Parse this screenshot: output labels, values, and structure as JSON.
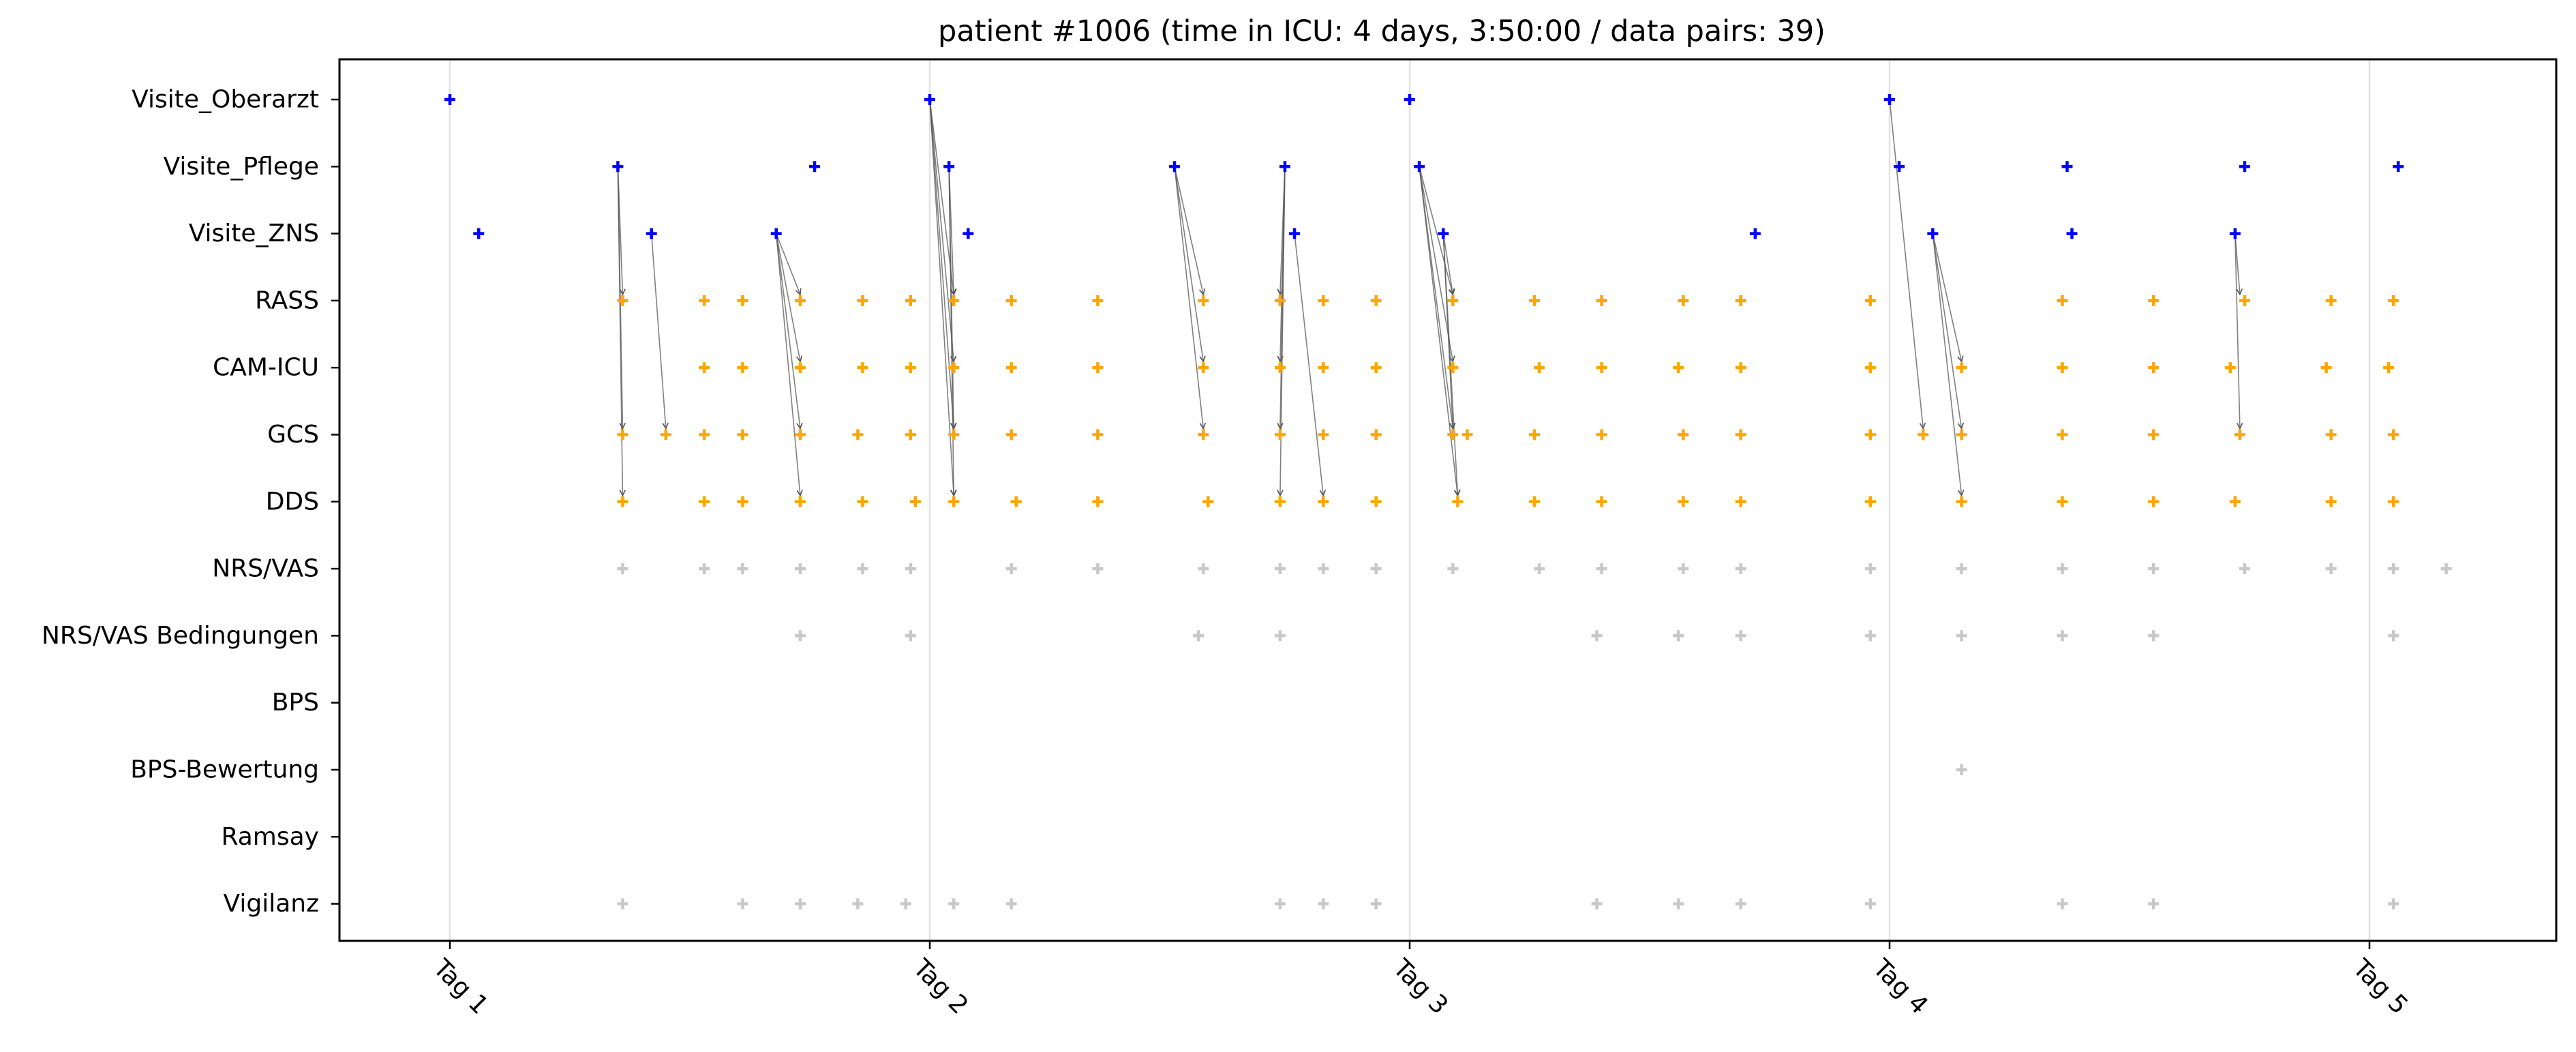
{
  "chart_data": {
    "type": "scatter",
    "title": "patient #1006 (time in ICU: 4 days, 3:50:00 / data pairs: 39)",
    "xlabel": "",
    "ylabel": "",
    "x_unit": "days since ICU admission (Tag 1 = 0)",
    "xlim": [
      -0.23,
      4.4
    ],
    "x_ticks": [
      {
        "value": 0,
        "label": "Tag 1"
      },
      {
        "value": 1,
        "label": "Tag 2"
      },
      {
        "value": 2,
        "label": "Tag 3"
      },
      {
        "value": 3,
        "label": "Tag 4"
      },
      {
        "value": 4,
        "label": "Tag 5"
      }
    ],
    "grid": "vertical lines at day ticks",
    "legend": "none",
    "colors": {
      "visite": "#0000ff",
      "assessment": "#ffa500",
      "other": "#c8c8c8",
      "arrow": "#555555"
    },
    "categories": [
      "Visite_Oberarzt",
      "Visite_Pflege",
      "Visite_ZNS",
      "RASS",
      "CAM-ICU",
      "GCS",
      "DDS",
      "NRS/VAS",
      "NRS/VAS Bedingungen",
      "BPS",
      "BPS-Bewertung",
      "Ramsay",
      "Vigilanz"
    ],
    "series": [
      {
        "category": "Visite_Oberarzt",
        "color": "#0000ff",
        "x": [
          0.0,
          1.0,
          2.0,
          3.0
        ]
      },
      {
        "category": "Visite_Pflege",
        "color": "#0000ff",
        "x": [
          0.35,
          0.76,
          1.04,
          1.51,
          1.74,
          2.02,
          3.02,
          3.37,
          3.74,
          4.06
        ]
      },
      {
        "category": "Visite_ZNS",
        "color": "#0000ff",
        "x": [
          0.06,
          0.42,
          0.68,
          1.08,
          1.76,
          2.07,
          2.72,
          3.09,
          3.38,
          3.72
        ]
      },
      {
        "category": "RASS",
        "color": "#ffa500",
        "x": [
          0.36,
          0.53,
          0.61,
          0.73,
          0.86,
          0.96,
          1.05,
          1.17,
          1.35,
          1.57,
          1.73,
          1.82,
          1.93,
          2.09,
          2.26,
          2.4,
          2.57,
          2.69,
          2.96,
          3.36,
          3.55,
          3.74,
          3.92,
          4.05
        ]
      },
      {
        "category": "CAM-ICU",
        "color": "#ffa500",
        "x": [
          0.53,
          0.61,
          0.73,
          0.86,
          0.96,
          1.05,
          1.17,
          1.35,
          1.57,
          1.73,
          1.82,
          1.93,
          2.09,
          2.27,
          2.4,
          2.56,
          2.69,
          2.96,
          3.15,
          3.36,
          3.55,
          3.71,
          3.91,
          4.04
        ]
      },
      {
        "category": "GCS",
        "color": "#ffa500",
        "x": [
          0.36,
          0.45,
          0.53,
          0.61,
          0.73,
          0.85,
          0.96,
          1.05,
          1.17,
          1.35,
          1.57,
          1.73,
          1.82,
          1.93,
          2.09,
          2.12,
          2.26,
          2.4,
          2.57,
          2.69,
          2.96,
          3.07,
          3.15,
          3.36,
          3.55,
          3.73,
          3.92,
          4.05
        ]
      },
      {
        "category": "DDS",
        "color": "#ffa500",
        "x": [
          0.36,
          0.53,
          0.61,
          0.73,
          0.86,
          0.97,
          1.05,
          1.18,
          1.35,
          1.58,
          1.73,
          1.82,
          1.93,
          2.1,
          2.26,
          2.4,
          2.57,
          2.69,
          2.96,
          3.15,
          3.36,
          3.55,
          3.72,
          3.92,
          4.05
        ]
      },
      {
        "category": "NRS/VAS",
        "color": "#c8c8c8",
        "x": [
          0.36,
          0.53,
          0.61,
          0.73,
          0.86,
          0.96,
          1.17,
          1.35,
          1.57,
          1.73,
          1.82,
          1.93,
          2.09,
          2.27,
          2.4,
          2.57,
          2.69,
          2.96,
          3.15,
          3.36,
          3.55,
          3.74,
          3.92,
          4.05,
          4.16
        ]
      },
      {
        "category": "NRS/VAS Bedingungen",
        "color": "#c8c8c8",
        "x": [
          0.73,
          0.96,
          1.56,
          1.73,
          2.39,
          2.56,
          2.69,
          2.96,
          3.15,
          3.36,
          3.55,
          4.05
        ]
      },
      {
        "category": "BPS",
        "color": "#c8c8c8",
        "x": []
      },
      {
        "category": "BPS-Bewertung",
        "color": "#c8c8c8",
        "x": [
          3.15
        ]
      },
      {
        "category": "Ramsay",
        "color": "#c8c8c8",
        "x": []
      },
      {
        "category": "Vigilanz",
        "color": "#c8c8c8",
        "x": [
          0.36,
          0.61,
          0.73,
          0.85,
          0.95,
          1.05,
          1.17,
          1.73,
          1.82,
          1.93,
          2.39,
          2.56,
          2.69,
          2.96,
          3.36,
          3.55,
          4.05
        ]
      }
    ],
    "arrows": [
      {
        "from": [
          0.35,
          "Visite_Pflege"
        ],
        "to": [
          0.36,
          "RASS"
        ]
      },
      {
        "from": [
          0.35,
          "Visite_Pflege"
        ],
        "to": [
          0.36,
          "GCS"
        ]
      },
      {
        "from": [
          0.35,
          "Visite_Pflege"
        ],
        "to": [
          0.36,
          "DDS"
        ]
      },
      {
        "from": [
          0.42,
          "Visite_ZNS"
        ],
        "to": [
          0.45,
          "GCS"
        ]
      },
      {
        "from": [
          0.68,
          "Visite_ZNS"
        ],
        "to": [
          0.73,
          "RASS"
        ]
      },
      {
        "from": [
          0.68,
          "Visite_ZNS"
        ],
        "to": [
          0.73,
          "CAM-ICU"
        ]
      },
      {
        "from": [
          0.68,
          "Visite_ZNS"
        ],
        "to": [
          0.73,
          "GCS"
        ]
      },
      {
        "from": [
          0.68,
          "Visite_ZNS"
        ],
        "to": [
          0.73,
          "DDS"
        ]
      },
      {
        "from": [
          1.0,
          "Visite_Oberarzt"
        ],
        "to": [
          1.05,
          "RASS"
        ]
      },
      {
        "from": [
          1.0,
          "Visite_Oberarzt"
        ],
        "to": [
          1.05,
          "CAM-ICU"
        ]
      },
      {
        "from": [
          1.0,
          "Visite_Oberarzt"
        ],
        "to": [
          1.05,
          "GCS"
        ]
      },
      {
        "from": [
          1.0,
          "Visite_Oberarzt"
        ],
        "to": [
          1.05,
          "DDS"
        ]
      },
      {
        "from": [
          1.04,
          "Visite_Pflege"
        ],
        "to": [
          1.05,
          "RASS"
        ]
      },
      {
        "from": [
          1.04,
          "Visite_Pflege"
        ],
        "to": [
          1.05,
          "GCS"
        ]
      },
      {
        "from": [
          1.04,
          "Visite_Pflege"
        ],
        "to": [
          1.05,
          "DDS"
        ]
      },
      {
        "from": [
          1.51,
          "Visite_Pflege"
        ],
        "to": [
          1.57,
          "RASS"
        ]
      },
      {
        "from": [
          1.51,
          "Visite_Pflege"
        ],
        "to": [
          1.57,
          "CAM-ICU"
        ]
      },
      {
        "from": [
          1.51,
          "Visite_Pflege"
        ],
        "to": [
          1.57,
          "GCS"
        ]
      },
      {
        "from": [
          1.74,
          "Visite_Pflege"
        ],
        "to": [
          1.73,
          "RASS"
        ]
      },
      {
        "from": [
          1.74,
          "Visite_Pflege"
        ],
        "to": [
          1.73,
          "CAM-ICU"
        ]
      },
      {
        "from": [
          1.74,
          "Visite_Pflege"
        ],
        "to": [
          1.73,
          "GCS"
        ]
      },
      {
        "from": [
          1.74,
          "Visite_Pflege"
        ],
        "to": [
          1.73,
          "DDS"
        ]
      },
      {
        "from": [
          1.76,
          "Visite_ZNS"
        ],
        "to": [
          1.82,
          "DDS"
        ]
      },
      {
        "from": [
          2.02,
          "Visite_Pflege"
        ],
        "to": [
          2.09,
          "RASS"
        ]
      },
      {
        "from": [
          2.02,
          "Visite_Pflege"
        ],
        "to": [
          2.09,
          "CAM-ICU"
        ]
      },
      {
        "from": [
          2.02,
          "Visite_Pflege"
        ],
        "to": [
          2.09,
          "GCS"
        ]
      },
      {
        "from": [
          2.02,
          "Visite_Pflege"
        ],
        "to": [
          2.1,
          "DDS"
        ]
      },
      {
        "from": [
          2.07,
          "Visite_ZNS"
        ],
        "to": [
          2.09,
          "RASS"
        ]
      },
      {
        "from": [
          2.07,
          "Visite_ZNS"
        ],
        "to": [
          2.09,
          "GCS"
        ]
      },
      {
        "from": [
          2.07,
          "Visite_ZNS"
        ],
        "to": [
          2.1,
          "DDS"
        ]
      },
      {
        "from": [
          3.0,
          "Visite_Oberarzt"
        ],
        "to": [
          3.07,
          "GCS"
        ]
      },
      {
        "from": [
          3.09,
          "Visite_ZNS"
        ],
        "to": [
          3.15,
          "CAM-ICU"
        ]
      },
      {
        "from": [
          3.09,
          "Visite_ZNS"
        ],
        "to": [
          3.15,
          "GCS"
        ]
      },
      {
        "from": [
          3.09,
          "Visite_ZNS"
        ],
        "to": [
          3.15,
          "DDS"
        ]
      },
      {
        "from": [
          3.72,
          "Visite_ZNS"
        ],
        "to": [
          3.73,
          "RASS"
        ]
      },
      {
        "from": [
          3.72,
          "Visite_ZNS"
        ],
        "to": [
          3.73,
          "GCS"
        ]
      }
    ]
  }
}
